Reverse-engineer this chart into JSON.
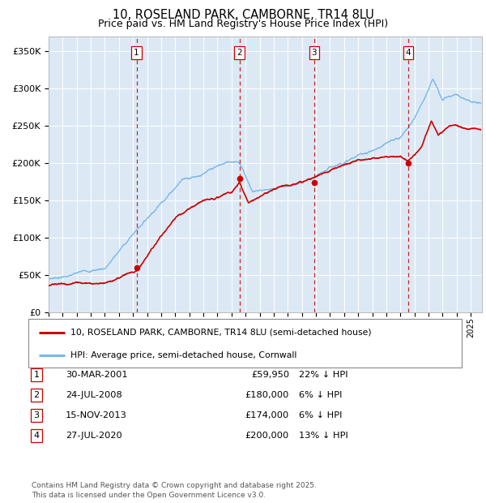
{
  "title_line1": "10, ROSELAND PARK, CAMBORNE, TR14 8LU",
  "title_line2": "Price paid vs. HM Land Registry's House Price Index (HPI)",
  "background_color": "#dce9f5",
  "plot_bg_color": "#dce9f5",
  "hpi_color": "#7ab8e8",
  "price_color": "#cc0000",
  "ylim": [
    0,
    370000
  ],
  "yticks": [
    0,
    50000,
    100000,
    150000,
    200000,
    250000,
    300000,
    350000
  ],
  "ytick_labels": [
    "£0",
    "£50K",
    "£100K",
    "£150K",
    "£200K",
    "£250K",
    "£300K",
    "£350K"
  ],
  "transactions": [
    {
      "num": 1,
      "date_label": "30-MAR-2001",
      "price": 59950,
      "pct": "22%",
      "x_year": 2001.25
    },
    {
      "num": 2,
      "date_label": "24-JUL-2008",
      "price": 180000,
      "pct": "6%",
      "x_year": 2008.56
    },
    {
      "num": 3,
      "date_label": "15-NOV-2013",
      "price": 174000,
      "pct": "6%",
      "x_year": 2013.88
    },
    {
      "num": 4,
      "date_label": "27-JUL-2020",
      "price": 200000,
      "pct": "13%",
      "x_year": 2020.56
    }
  ],
  "legend_label_red": "10, ROSELAND PARK, CAMBORNE, TR14 8LU (semi-detached house)",
  "legend_label_blue": "HPI: Average price, semi-detached house, Cornwall",
  "footer": "Contains HM Land Registry data © Crown copyright and database right 2025.\nThis data is licensed under the Open Government Licence v3.0.",
  "xlim_start": 1995.0,
  "xlim_end": 2025.8
}
